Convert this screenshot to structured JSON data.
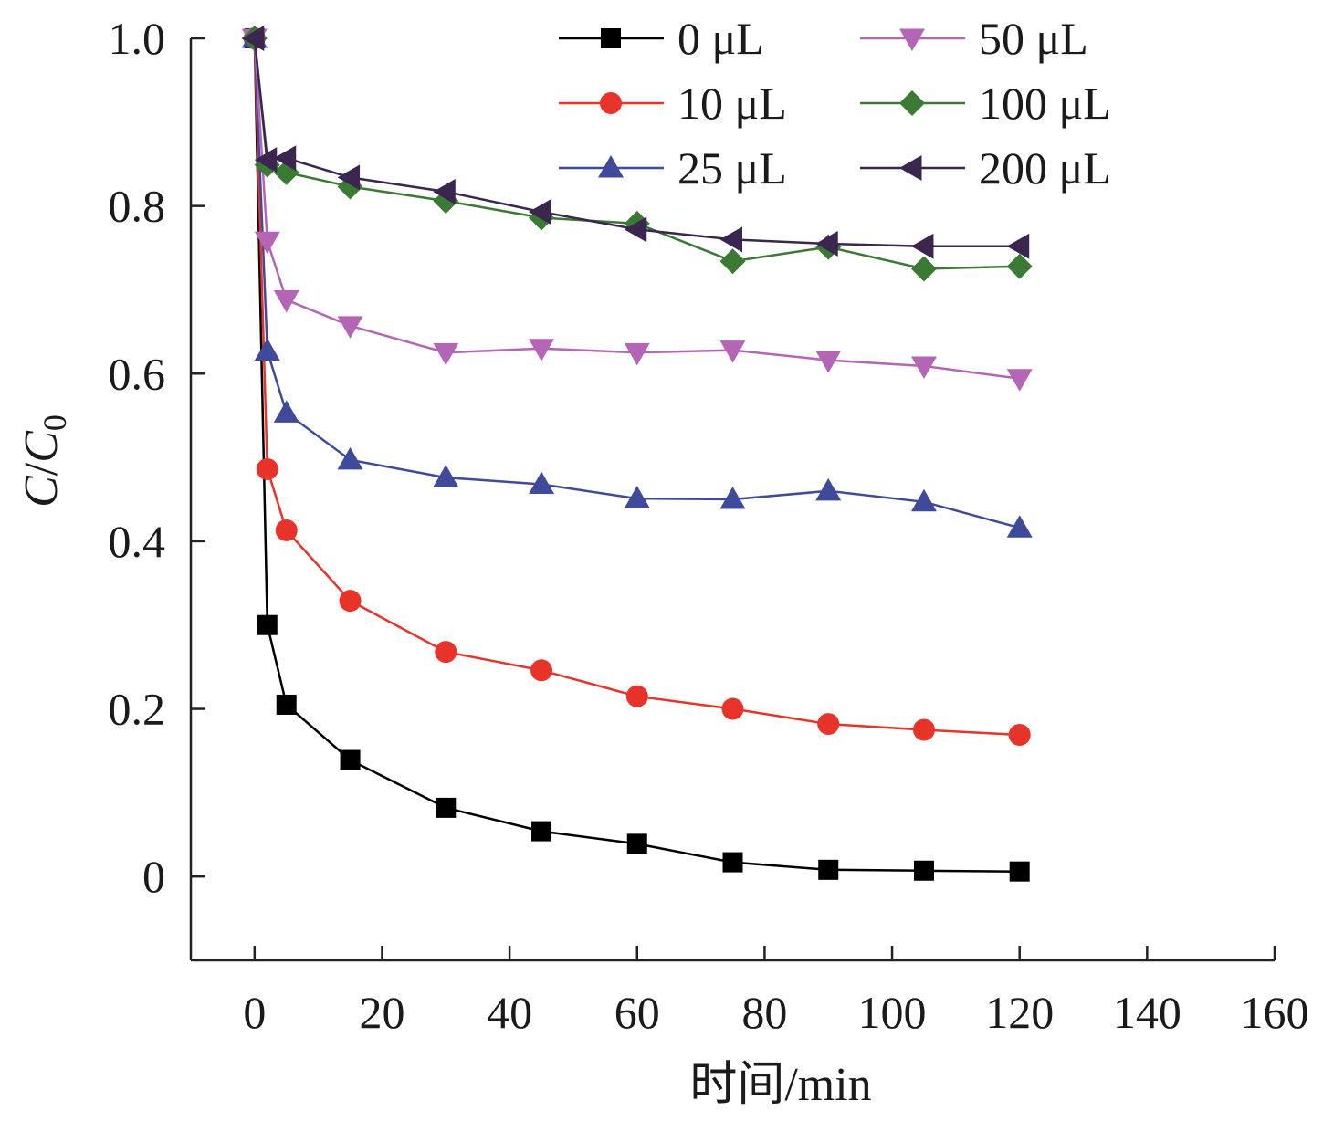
{
  "chart_data": {
    "type": "line",
    "title": "",
    "xlabel": "时间/min",
    "ylabel": {
      "main": "C",
      "sep": "/",
      "sub_main": "C",
      "sub": "0"
    },
    "xlim": [
      -10,
      160
    ],
    "ylim": [
      -0.1,
      1.0
    ],
    "xticks": [
      0,
      20,
      40,
      60,
      80,
      100,
      120,
      140,
      160
    ],
    "yticks": [
      0,
      0.2,
      0.4,
      0.6,
      0.8,
      1.0
    ],
    "ytick_labels": [
      "0",
      "0.2",
      "0.4",
      "0.6",
      "0.8",
      "1.0"
    ],
    "grid": false,
    "legend_position": "top-right",
    "x": [
      0,
      2,
      5,
      15,
      30,
      45,
      60,
      75,
      90,
      105,
      120
    ],
    "series": [
      {
        "name": "0 μL",
        "color": "#000000",
        "marker": "square",
        "values": [
          1.0,
          0.3,
          0.205,
          0.139,
          0.082,
          0.054,
          0.039,
          0.017,
          0.008,
          0.007,
          0.006
        ]
      },
      {
        "name": "10 μL",
        "color": "#e8332a",
        "marker": "circle",
        "values": [
          1.0,
          0.486,
          0.413,
          0.329,
          0.268,
          0.246,
          0.215,
          0.2,
          0.182,
          0.175,
          0.169
        ]
      },
      {
        "name": "25 μL",
        "color": "#3f4a9b",
        "marker": "triangle-up",
        "values": [
          1.0,
          0.627,
          0.553,
          0.497,
          0.476,
          0.468,
          0.451,
          0.45,
          0.46,
          0.447,
          0.416
        ]
      },
      {
        "name": "50 μL",
        "color": "#b565b5",
        "marker": "triangle-down",
        "values": [
          1.0,
          0.758,
          0.688,
          0.657,
          0.625,
          0.63,
          0.625,
          0.628,
          0.616,
          0.609,
          0.594
        ]
      },
      {
        "name": "100 μL",
        "color": "#3b7a34",
        "marker": "diamond",
        "values": [
          1.0,
          0.849,
          0.84,
          0.823,
          0.806,
          0.786,
          0.779,
          0.734,
          0.751,
          0.725,
          0.728
        ]
      },
      {
        "name": "200 μL",
        "color": "#3b2650",
        "marker": "triangle-left",
        "values": [
          1.0,
          0.855,
          0.857,
          0.834,
          0.817,
          0.793,
          0.772,
          0.76,
          0.755,
          0.752,
          0.752
        ]
      }
    ]
  }
}
